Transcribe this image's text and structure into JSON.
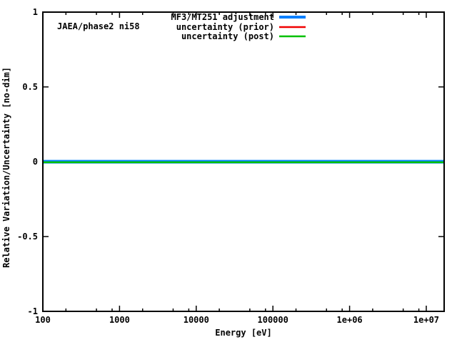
{
  "figure": {
    "background": "#ffffff",
    "annotation": "JAEA/phase2 ni58",
    "text_color": "#000000",
    "border_color": "#000000"
  },
  "chart_data": {
    "type": "line",
    "title": "",
    "xlabel": "Energy [eV]",
    "ylabel": "Relative Variation/Uncertainty [no-dim]",
    "x_scale": "log10",
    "y_scale": "linear",
    "xlim": [
      100,
      17100000
    ],
    "ylim": [
      -1,
      1
    ],
    "grid": false,
    "legend_position": "inside-top-right",
    "x_tick_labels": [
      "100",
      "1000",
      "10000",
      "100000",
      "1e+06",
      "1e+07"
    ],
    "x_tick_values": [
      100,
      1000,
      10000,
      100000,
      1000000,
      10000000
    ],
    "x_minor_tick_values": [
      200,
      500,
      800,
      2000,
      5000,
      8000,
      20000,
      50000,
      80000,
      200000,
      500000,
      800000,
      2000000,
      5000000,
      8000000
    ],
    "y_tick_labels": [
      "-1",
      "-0.5",
      "0",
      "0.5",
      "1"
    ],
    "y_tick_values": [
      -1,
      -0.5,
      0,
      0.5,
      1
    ],
    "series": [
      {
        "name": "MF3/MT251 adjustment",
        "color": "#0080ff",
        "linewidth": 5,
        "x": [
          100,
          17100000
        ],
        "y": [
          0,
          0
        ]
      },
      {
        "name": "uncertainty (prior)",
        "color": "#f00000",
        "linewidth": 2.5,
        "x": [
          100,
          17100000
        ],
        "y": [
          0,
          0
        ]
      },
      {
        "name": "uncertainty (post)",
        "color": "#00c000",
        "linewidth": 2.5,
        "x": [
          100,
          17100000
        ],
        "y": [
          0,
          0
        ]
      }
    ]
  }
}
